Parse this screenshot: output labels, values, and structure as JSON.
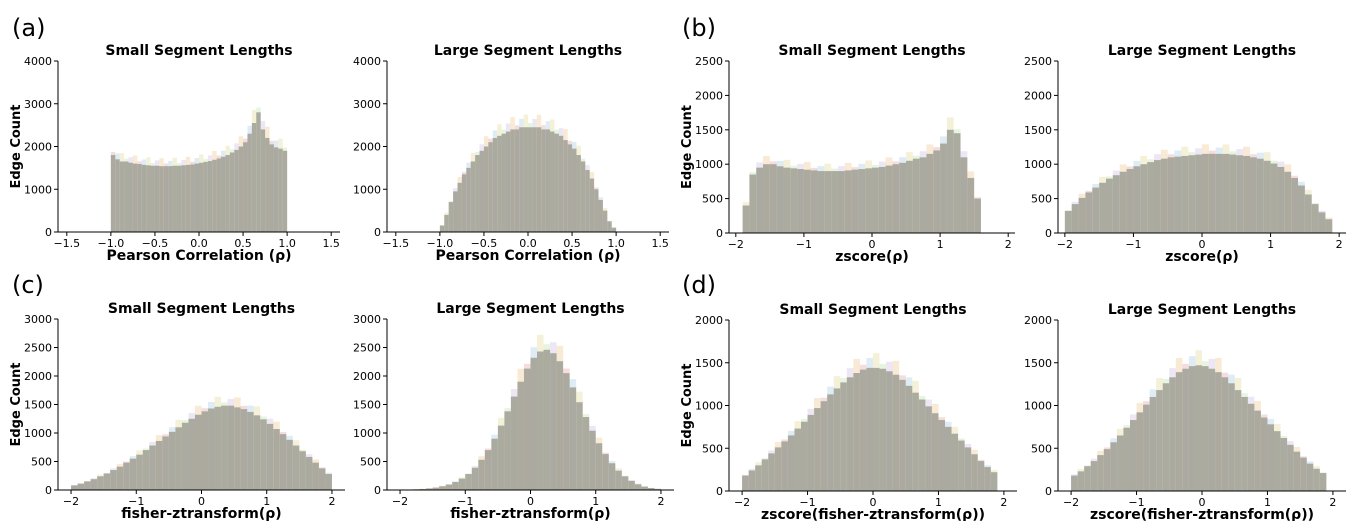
{
  "panel_labels": [
    "(a)",
    "(b)",
    "(c)",
    "(d)"
  ],
  "chart_data": [
    {
      "type": "bar",
      "panel": "(a)",
      "title": "Small Segment Lengths",
      "xlabel": "Pearson Correlation (ρ)",
      "ylabel": "Edge Count",
      "xlim": [
        -1.6,
        1.6
      ],
      "ylim": [
        0,
        4000
      ],
      "xticks": [
        -1.5,
        -1.0,
        -0.5,
        0.0,
        0.5,
        1.0,
        1.5
      ],
      "xtick_labels": [
        "−1.5",
        "−1.0",
        "−0.5",
        "0.0",
        "0.5",
        "1.0",
        "1.5"
      ],
      "yticks": [
        0,
        1000,
        2000,
        3000,
        4000
      ],
      "bin_start": -1.0,
      "bin_width": 0.05,
      "values": [
        1800,
        1700,
        1650,
        1650,
        1620,
        1600,
        1590,
        1570,
        1560,
        1550,
        1550,
        1540,
        1540,
        1540,
        1550,
        1550,
        1560,
        1570,
        1580,
        1600,
        1620,
        1640,
        1660,
        1690,
        1720,
        1760,
        1800,
        1860,
        1920,
        2000,
        2100,
        2300,
        2550,
        2800,
        2400,
        2200,
        2050,
        1980,
        1950,
        1900
      ]
    },
    {
      "type": "bar",
      "panel": "(a)",
      "title": "Large Segment Lengths",
      "xlabel": "Pearson Correlation (ρ)",
      "ylabel": "",
      "xlim": [
        -1.6,
        1.6
      ],
      "ylim": [
        0,
        4000
      ],
      "xticks": [
        -1.5,
        -1.0,
        -0.5,
        0.0,
        0.5,
        1.0,
        1.5
      ],
      "xtick_labels": [
        "−1.5",
        "−1.0",
        "−0.5",
        "0.0",
        "0.5",
        "1.0",
        "1.5"
      ],
      "yticks": [
        0,
        1000,
        2000,
        3000,
        4000
      ],
      "bin_start": -1.0,
      "bin_width": 0.05,
      "values": [
        150,
        400,
        700,
        950,
        1150,
        1350,
        1500,
        1650,
        1800,
        1900,
        2000,
        2100,
        2200,
        2250,
        2300,
        2350,
        2400,
        2400,
        2450,
        2450,
        2450,
        2450,
        2450,
        2400,
        2400,
        2350,
        2300,
        2250,
        2150,
        2050,
        1950,
        1800,
        1650,
        1450,
        1250,
        1000,
        750,
        500,
        250,
        100
      ]
    },
    {
      "type": "bar",
      "panel": "(b)",
      "title": "Small Segment Lengths",
      "xlabel": "zscore(ρ)",
      "ylabel": "Edge Count",
      "xlim": [
        -2.1,
        2.1
      ],
      "ylim": [
        0,
        2500
      ],
      "xticks": [
        -2,
        -1,
        0,
        1,
        2
      ],
      "xtick_labels": [
        "−2",
        "−1",
        "0",
        "1",
        "2"
      ],
      "yticks": [
        0,
        500,
        1000,
        1500,
        2000,
        2500
      ],
      "bin_start": -1.9,
      "bin_width": 0.1,
      "values": [
        400,
        850,
        950,
        1000,
        1000,
        970,
        950,
        940,
        930,
        920,
        910,
        900,
        900,
        900,
        900,
        910,
        920,
        930,
        940,
        950,
        960,
        980,
        1000,
        1020,
        1050,
        1080,
        1100,
        1150,
        1200,
        1300,
        1500,
        1450,
        1100,
        800,
        500
      ]
    },
    {
      "type": "bar",
      "panel": "(b)",
      "title": "Large Segment Lengths",
      "xlabel": "zscore(ρ)",
      "ylabel": "",
      "xlim": [
        -2.1,
        2.1
      ],
      "ylim": [
        0,
        2500
      ],
      "xticks": [
        -2,
        -1,
        0,
        1,
        2
      ],
      "xtick_labels": [
        "−2",
        "−1",
        "0",
        "1",
        "2"
      ],
      "yticks": [
        0,
        500,
        1000,
        1500,
        2000,
        2500
      ],
      "bin_start": -2.0,
      "bin_width": 0.1,
      "values": [
        320,
        420,
        510,
        590,
        660,
        730,
        790,
        840,
        890,
        930,
        970,
        1000,
        1030,
        1060,
        1080,
        1100,
        1110,
        1120,
        1130,
        1140,
        1150,
        1150,
        1150,
        1150,
        1140,
        1130,
        1120,
        1100,
        1080,
        1050,
        1010,
        960,
        890,
        800,
        690,
        560,
        420,
        300,
        200
      ]
    },
    {
      "type": "bar",
      "panel": "(c)",
      "title": "Small Segment Lengths",
      "xlabel": "fisher-ztransform(ρ)",
      "ylabel": "Edge Count",
      "xlim": [
        -2.2,
        2.2
      ],
      "ylim": [
        0,
        3000
      ],
      "xticks": [
        -2,
        -1,
        0,
        1,
        2
      ],
      "xtick_labels": [
        "−2",
        "−1",
        "0",
        "1",
        "2"
      ],
      "yticks": [
        0,
        500,
        1000,
        1500,
        2000,
        2500,
        3000
      ],
      "bin_start": -2.0,
      "bin_width": 0.1,
      "values": [
        80,
        110,
        150,
        190,
        240,
        290,
        350,
        410,
        480,
        550,
        620,
        700,
        780,
        860,
        940,
        1020,
        1100,
        1180,
        1250,
        1320,
        1380,
        1430,
        1460,
        1480,
        1480,
        1450,
        1420,
        1370,
        1310,
        1240,
        1160,
        1070,
        980,
        880,
        780,
        680,
        580,
        480,
        380,
        280
      ]
    },
    {
      "type": "bar",
      "panel": "(c)",
      "title": "Large Segment Lengths",
      "xlabel": "fisher-ztransform(ρ)",
      "ylabel": "",
      "xlim": [
        -2.2,
        2.2
      ],
      "ylim": [
        0,
        3000
      ],
      "xticks": [
        -2,
        -1,
        0,
        1,
        2
      ],
      "xtick_labels": [
        "−2",
        "−1",
        "0",
        "1",
        "2"
      ],
      "yticks": [
        0,
        500,
        1000,
        1500,
        2000,
        2500,
        3000
      ],
      "bin_start": -2.0,
      "bin_width": 0.1,
      "values": [
        5,
        8,
        12,
        18,
        28,
        42,
        65,
        95,
        140,
        200,
        280,
        390,
        530,
        700,
        900,
        1130,
        1380,
        1640,
        1900,
        2130,
        2320,
        2430,
        2460,
        2400,
        2260,
        2050,
        1800,
        1540,
        1280,
        1040,
        820,
        630,
        470,
        340,
        240,
        160,
        100,
        60,
        35,
        20
      ]
    },
    {
      "type": "bar",
      "panel": "(d)",
      "title": "Small Segment Lengths",
      "xlabel": "zscore(fisher-ztransform(ρ))",
      "ylabel": "Edge Count",
      "xlim": [
        -2.2,
        2.2
      ],
      "ylim": [
        0,
        2000
      ],
      "xticks": [
        -2,
        -1,
        0,
        1,
        2
      ],
      "xtick_labels": [
        "−2",
        "−1",
        "0",
        "1",
        "2"
      ],
      "yticks": [
        0,
        500,
        1000,
        1500,
        2000
      ],
      "bin_start": -2.0,
      "bin_width": 0.1,
      "values": [
        180,
        240,
        300,
        370,
        440,
        510,
        580,
        650,
        730,
        810,
        890,
        970,
        1050,
        1130,
        1200,
        1270,
        1330,
        1380,
        1420,
        1440,
        1440,
        1430,
        1400,
        1360,
        1300,
        1230,
        1150,
        1070,
        990,
        910,
        830,
        750,
        670,
        590,
        510,
        430,
        350,
        280,
        220
      ]
    },
    {
      "type": "bar",
      "panel": "(d)",
      "title": "Large Segment Lengths",
      "xlabel": "zscore(fisher-ztransform(ρ))",
      "ylabel": "",
      "xlim": [
        -2.2,
        2.2
      ],
      "ylim": [
        0,
        2000
      ],
      "xticks": [
        -2,
        -1,
        0,
        1,
        2
      ],
      "xtick_labels": [
        "−2",
        "−1",
        "0",
        "1",
        "2"
      ],
      "yticks": [
        0,
        500,
        1000,
        1500,
        2000
      ],
      "bin_start": -2.0,
      "bin_width": 0.1,
      "values": [
        180,
        230,
        290,
        350,
        420,
        490,
        570,
        650,
        740,
        830,
        920,
        1010,
        1100,
        1180,
        1260,
        1330,
        1390,
        1430,
        1460,
        1470,
        1460,
        1430,
        1390,
        1330,
        1260,
        1180,
        1100,
        1020,
        940,
        860,
        780,
        700,
        620,
        540,
        460,
        390,
        320,
        260,
        210
      ]
    }
  ],
  "colors": {
    "bar_fill": "#a8a69c",
    "overlay_tints": [
      "#e8b4b4",
      "#b4d4e8",
      "#e8e0a8",
      "#c8e8b8",
      "#d8c8e8",
      "#f0d0a0"
    ]
  }
}
